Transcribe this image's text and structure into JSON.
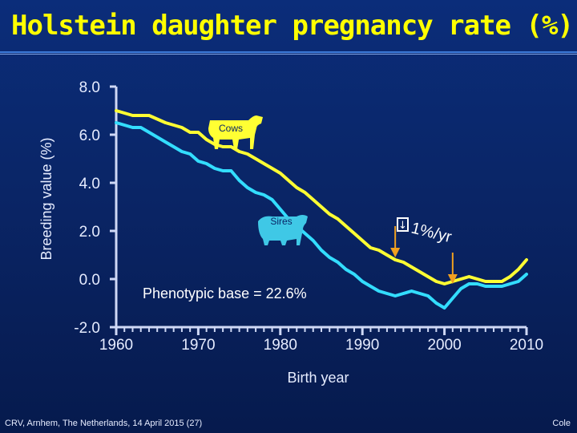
{
  "slide": {
    "title": "Holstein daughter pregnancy rate (%)",
    "footer_left": "CRV, Arnhem, The Netherlands, 14 April 2015 (27)",
    "footer_right": "Cole"
  },
  "colors": {
    "background": "#0a2566",
    "title": "#ffff00",
    "cows": "#ffff33",
    "sires": "#33ddff",
    "arrow": "#f0a020",
    "text": "#e6ecff"
  },
  "chart_data": {
    "type": "line",
    "title": "Holstein daughter pregnancy rate (%)",
    "xlabel": "Birth year",
    "ylabel": "Breeding value (%)",
    "xlim": [
      1960,
      2010
    ],
    "ylim": [
      -2.0,
      8.0
    ],
    "xticks": [
      "1960",
      "1970",
      "1980",
      "1990",
      "2000",
      "2010"
    ],
    "yticks": [
      "-2.0",
      "0.0",
      "2.0",
      "4.0",
      "6.0",
      "8.0"
    ],
    "series": [
      {
        "name": "Cows",
        "color": "#ffff33",
        "x": [
          1960,
          1962,
          1963,
          1964,
          1966,
          1967,
          1968,
          1969,
          1970,
          1971,
          1972,
          1973,
          1974,
          1975,
          1976,
          1977,
          1978,
          1979,
          1980,
          1981,
          1982,
          1983,
          1984,
          1985,
          1986,
          1987,
          1988,
          1989,
          1990,
          1991,
          1992,
          1993,
          1994,
          1995,
          1996,
          1997,
          1998,
          1999,
          2000,
          2001,
          2002,
          2003,
          2004,
          2005,
          2006,
          2007,
          2008,
          2009,
          2010
        ],
        "values": [
          7.0,
          6.8,
          6.8,
          6.8,
          6.5,
          6.4,
          6.3,
          6.1,
          6.1,
          5.8,
          5.6,
          5.5,
          5.5,
          5.3,
          5.2,
          5.0,
          4.8,
          4.6,
          4.4,
          4.1,
          3.8,
          3.6,
          3.3,
          3.0,
          2.7,
          2.5,
          2.2,
          1.9,
          1.6,
          1.3,
          1.2,
          1.0,
          0.8,
          0.7,
          0.5,
          0.3,
          0.1,
          -0.1,
          -0.2,
          -0.1,
          0.0,
          0.1,
          0.0,
          -0.1,
          -0.1,
          -0.1,
          0.1,
          0.4,
          0.8
        ]
      },
      {
        "name": "Sires",
        "color": "#33ddff",
        "x": [
          1960,
          1962,
          1963,
          1964,
          1966,
          1967,
          1968,
          1969,
          1970,
          1971,
          1972,
          1973,
          1974,
          1975,
          1976,
          1977,
          1978,
          1979,
          1980,
          1981,
          1982,
          1983,
          1984,
          1985,
          1986,
          1987,
          1988,
          1989,
          1990,
          1991,
          1992,
          1993,
          1994,
          1995,
          1996,
          1997,
          1998,
          1999,
          2000,
          2001,
          2002,
          2003,
          2004,
          2005,
          2006,
          2007,
          2008,
          2009,
          2010
        ],
        "values": [
          6.5,
          6.3,
          6.3,
          6.1,
          5.7,
          5.5,
          5.3,
          5.2,
          4.9,
          4.8,
          4.6,
          4.5,
          4.5,
          4.1,
          3.8,
          3.6,
          3.5,
          3.3,
          2.9,
          2.5,
          2.2,
          1.9,
          1.6,
          1.2,
          0.9,
          0.7,
          0.4,
          0.2,
          -0.1,
          -0.3,
          -0.5,
          -0.6,
          -0.7,
          -0.6,
          -0.5,
          -0.6,
          -0.7,
          -1.0,
          -1.2,
          -0.8,
          -0.4,
          -0.2,
          -0.2,
          -0.3,
          -0.3,
          -0.3,
          -0.2,
          -0.1,
          0.2
        ]
      }
    ],
    "annotations": [
      {
        "text": "Phenotypic base = 22.6%",
        "x": 1963,
        "y": -0.7
      },
      {
        "text": "1%/yr",
        "x": 1996,
        "y": 1.9
      },
      {
        "text": "Cows",
        "x": 1978,
        "y": 6.2
      },
      {
        "text": "Sires",
        "x": 1977,
        "y": 2.2
      }
    ],
    "arrows": [
      {
        "x": 1994,
        "from_y": 2.2,
        "to_y": 0.9
      },
      {
        "x": 2001,
        "from_y": 1.1,
        "to_y": -0.2
      }
    ],
    "grid": false,
    "legend": "none"
  }
}
